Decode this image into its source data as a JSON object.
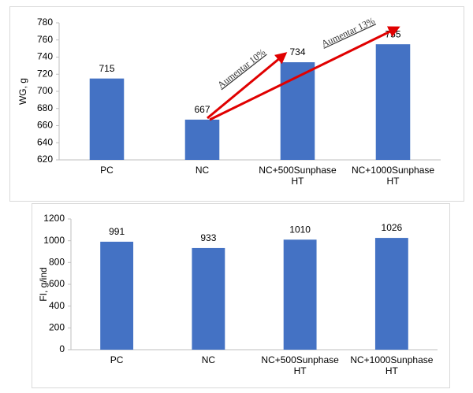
{
  "chart_data": [
    {
      "type": "bar",
      "y_label": "WG, g",
      "categories": [
        "PC",
        "NC",
        "NC+500Sunphase HT",
        "NC+1000Sunphase HT"
      ],
      "values": [
        715,
        667,
        734,
        755
      ],
      "color": "#4472c4",
      "ylim": [
        620,
        780
      ],
      "yticks": [
        620,
        640,
        660,
        680,
        700,
        720,
        740,
        760,
        780
      ],
      "grid": false,
      "annotations": [
        "Aumentar 10%",
        "Aumentar 13%"
      ]
    },
    {
      "type": "bar",
      "y_label": "FI, g/ind",
      "categories": [
        "PC",
        "NC",
        "NC+500Sunphase HT",
        "NC+1000Sunphase HT"
      ],
      "values": [
        991,
        933,
        1010,
        1026
      ],
      "color": "#4472c4",
      "ylim": [
        0,
        1200
      ],
      "yticks": [
        0,
        200,
        400,
        600,
        800,
        1000,
        1200
      ],
      "grid": false
    }
  ]
}
